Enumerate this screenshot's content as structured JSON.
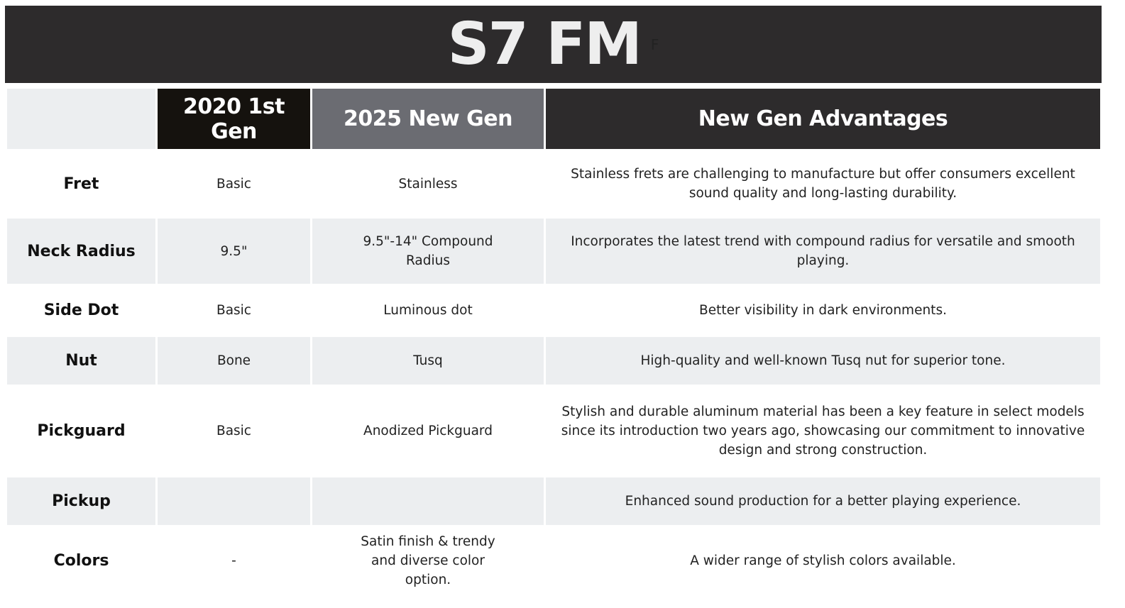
{
  "title": {
    "text": "S7 FM",
    "stray_glyph": "F"
  },
  "columns": [
    "",
    "2020 1st Gen",
    "2025 New Gen",
    "New Gen Advantages"
  ],
  "rows": [
    {
      "feature": "Fret",
      "gen2020": "Basic",
      "gen2025": "Stainless",
      "advantage": "Stainless frets are challenging to manufacture but offer consumers excellent sound quality and long-lasting durability."
    },
    {
      "feature": "Neck Radius",
      "gen2020": "9.5\"",
      "gen2025": "9.5\"-14\" Compound Radius",
      "advantage": "Incorporates the latest trend with compound radius for versatile and smooth playing."
    },
    {
      "feature": "Side Dot",
      "gen2020": "Basic",
      "gen2025": "Luminous dot",
      "advantage": "Better visibility in dark environments."
    },
    {
      "feature": "Nut",
      "gen2020": "Bone",
      "gen2025": "Tusq",
      "advantage": "High-quality and well-known Tusq nut for superior tone."
    },
    {
      "feature": "Pickguard",
      "gen2020": "Basic",
      "gen2025": "Anodized Pickguard",
      "advantage": "Stylish and durable aluminum material has been a key feature in select models since its introduction two years ago, showcasing our commitment to innovative design and strong construction."
    },
    {
      "feature": "Pickup",
      "gen2020": "",
      "gen2025": "",
      "advantage": "Enhanced sound production for a better playing experience."
    },
    {
      "feature": "Colors",
      "gen2020": "-",
      "gen2025": "Satin finish & trendy and diverse color option.",
      "advantage": "A wider range of stylish colors available."
    }
  ],
  "colors": {
    "title_bg": "#2d2b2c",
    "col2020_bg": "#15120e",
    "col2025_bg": "#6b6c72",
    "shade": "#eceef0"
  }
}
